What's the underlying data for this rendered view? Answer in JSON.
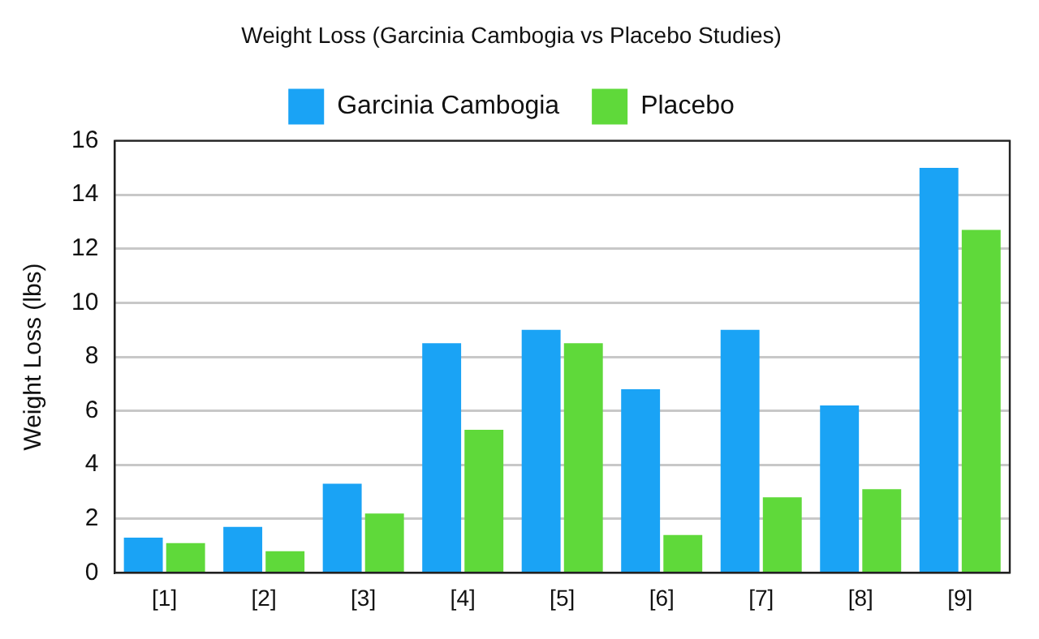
{
  "chart_data": {
    "type": "bar",
    "title": "Weight Loss (Garcinia Cambogia vs Placebo Studies)",
    "ylabel": "Weight Loss (lbs)",
    "categories": [
      "[1]",
      "[2]",
      "[3]",
      "[4]",
      "[5]",
      "[6]",
      "[7]",
      "[8]",
      "[9]"
    ],
    "series": [
      {
        "name": "Garcinia Cambogia",
        "color": "#1aa3f5",
        "values": [
          1.3,
          1.7,
          3.3,
          8.5,
          9.0,
          6.8,
          9.0,
          6.2,
          15.0
        ]
      },
      {
        "name": "Placebo",
        "color": "#5fd93a",
        "values": [
          1.1,
          0.8,
          2.2,
          5.3,
          8.5,
          1.4,
          2.8,
          3.1,
          12.7
        ]
      }
    ],
    "ylim": [
      0,
      16
    ],
    "yticks": [
      0,
      2,
      4,
      6,
      8,
      10,
      12,
      14,
      16
    ],
    "grid": "y",
    "legend": "top"
  }
}
